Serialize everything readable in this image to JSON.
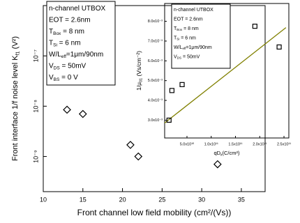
{
  "chart_data": [
    {
      "type": "scatter",
      "y_label": {
        "text": "Front interface 1/f noise level K",
        "sub": "f1",
        "tail": " (V²)"
      },
      "x_label": {
        "text": "Front channel low field mobility (cm²/(Vs))"
      },
      "x": [
        13,
        15,
        21,
        22,
        32
      ],
      "values": [
        8.5e-09,
        7e-09,
        1.7e-09,
        1e-09,
        7e-10
      ],
      "marker": "diamond",
      "color": "#000000",
      "xlim": [
        10,
        38
      ],
      "xticks": [
        10,
        15,
        20,
        25,
        30,
        35
      ],
      "ylim": [
        2e-10,
        1e-06
      ],
      "ylog": true,
      "yticks": [
        {
          "value": 1e-09,
          "label": "10⁻⁹"
        },
        {
          "value": 1e-08,
          "label": "10⁻⁸"
        },
        {
          "value": 1e-07,
          "label": "10⁻⁷"
        }
      ],
      "annotation": [
        {
          "text": "n-channel UTBOX"
        },
        {
          "text": "EOT = 2.6nm"
        },
        {
          "text": "T",
          "sub": "Box",
          "tail": " = 8 nm"
        },
        {
          "text": "T",
          "sub": "Si",
          "tail": " = 6 nm"
        },
        {
          "text": "W/L",
          "sub": "eff",
          "tail": "=1μm/90nm"
        },
        {
          "text": "V",
          "sub": "DS",
          "tail": " = 50mV"
        },
        {
          "text": "V",
          "sub": "BS",
          "tail": " = 0 V"
        }
      ]
    },
    {
      "type": "scatter",
      "y_label": {
        "text": "1/μ",
        "sub": "01",
        "tail": " (Vs/cm⁻²)"
      },
      "x_label": {
        "text": "qD",
        "sub": "it",
        "tail": "(C/cm²)"
      },
      "x": [
        13000000000.0,
        19000000000.0,
        40000000000.0,
        190000000000.0,
        240000000000.0
      ],
      "values": [
        0.003,
        0.0045,
        0.0048,
        0.00775,
        0.0067
      ],
      "marker": "square",
      "color": "#000000",
      "fit_line": {
        "x": [
          4000000000.0,
          254000000000.0
        ],
        "values": [
          0.00286,
          0.00768
        ],
        "color": "#808000"
      },
      "xlim": [
        4000000000.0,
        260000000000.0
      ],
      "xticks": [
        {
          "value": 50000000000.0,
          "label": "5.0x10¹⁰"
        },
        {
          "value": 100000000000.0,
          "label": "1.0x10¹¹"
        },
        {
          "value": 150000000000.0,
          "label": "1.5x10¹¹"
        },
        {
          "value": 200000000000.0,
          "label": "2.0x10¹¹"
        },
        {
          "value": 250000000000.0,
          "label": "2.5x10¹¹"
        }
      ],
      "ylim": [
        0.0021,
        0.0089
      ],
      "yticks": [
        {
          "value": 0.003,
          "label": "3.0x10⁻³"
        },
        {
          "value": 0.004,
          "label": "4.0x10⁻³"
        },
        {
          "value": 0.005,
          "label": "5.0x10⁻³"
        },
        {
          "value": 0.006,
          "label": "6.0x10⁻³"
        },
        {
          "value": 0.007,
          "label": "7.0x10⁻³"
        },
        {
          "value": 0.008,
          "label": "8.0x10⁻³"
        }
      ],
      "annotation": [
        {
          "text": "n-channel UTBOX"
        },
        {
          "text": "EOT = 2.6nm"
        },
        {
          "text": "T",
          "sub": "Box",
          "tail": " = 8 nm"
        },
        {
          "text": "T",
          "sub": "Si",
          "tail": " = 6 nm"
        },
        {
          "text": "W/L",
          "sub": "eff",
          "tail": "=1μm/90nm"
        },
        {
          "text": "V",
          "sub": "DS",
          "tail": " = 50mV"
        }
      ]
    }
  ]
}
